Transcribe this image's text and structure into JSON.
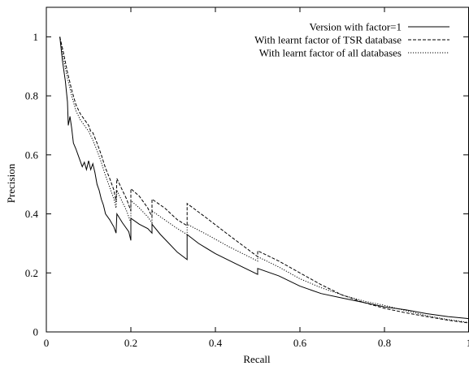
{
  "chart_data": {
    "type": "line",
    "title": "",
    "xlabel": "Recall",
    "ylabel": "Precision",
    "xlim": [
      0,
      1
    ],
    "ylim": [
      0,
      1.1
    ],
    "xticks": [
      0,
      0.2,
      0.4,
      0.6,
      0.8,
      1
    ],
    "yticks": [
      0,
      0.2,
      0.4,
      0.6,
      0.8,
      1
    ],
    "xtick_labels": [
      "0",
      "0.2",
      "0.4",
      "0.6",
      "0.8",
      "1"
    ],
    "ytick_labels": [
      "0",
      "0.2",
      "0.4",
      "0.6",
      "0.8",
      "1"
    ],
    "grid": false,
    "legend_position": "top-right",
    "series": [
      {
        "name": "Version with factor=1",
        "line_style": "solid",
        "points": [
          [
            0.032,
            1.0
          ],
          [
            0.038,
            0.92
          ],
          [
            0.045,
            0.85
          ],
          [
            0.05,
            0.78
          ],
          [
            0.052,
            0.7
          ],
          [
            0.056,
            0.73
          ],
          [
            0.06,
            0.69
          ],
          [
            0.064,
            0.64
          ],
          [
            0.07,
            0.62
          ],
          [
            0.075,
            0.6
          ],
          [
            0.08,
            0.58
          ],
          [
            0.085,
            0.56
          ],
          [
            0.09,
            0.575
          ],
          [
            0.095,
            0.55
          ],
          [
            0.1,
            0.58
          ],
          [
            0.105,
            0.55
          ],
          [
            0.11,
            0.57
          ],
          [
            0.115,
            0.54
          ],
          [
            0.12,
            0.5
          ],
          [
            0.125,
            0.48
          ],
          [
            0.13,
            0.45
          ],
          [
            0.135,
            0.43
          ],
          [
            0.14,
            0.4
          ],
          [
            0.15,
            0.38
          ],
          [
            0.16,
            0.355
          ],
          [
            0.165,
            0.335
          ],
          [
            0.167,
            0.4
          ],
          [
            0.18,
            0.37
          ],
          [
            0.195,
            0.34
          ],
          [
            0.2,
            0.31
          ],
          [
            0.2,
            0.385
          ],
          [
            0.22,
            0.365
          ],
          [
            0.24,
            0.35
          ],
          [
            0.25,
            0.335
          ],
          [
            0.25,
            0.365
          ],
          [
            0.27,
            0.33
          ],
          [
            0.29,
            0.3
          ],
          [
            0.31,
            0.27
          ],
          [
            0.333,
            0.245
          ],
          [
            0.333,
            0.33
          ],
          [
            0.36,
            0.3
          ],
          [
            0.4,
            0.265
          ],
          [
            0.45,
            0.23
          ],
          [
            0.5,
            0.195
          ],
          [
            0.5,
            0.215
          ],
          [
            0.55,
            0.19
          ],
          [
            0.6,
            0.155
          ],
          [
            0.65,
            0.13
          ],
          [
            0.7,
            0.115
          ],
          [
            0.75,
            0.1
          ],
          [
            0.8,
            0.085
          ],
          [
            0.85,
            0.075
          ],
          [
            0.9,
            0.062
          ],
          [
            0.95,
            0.052
          ],
          [
            1.0,
            0.045
          ]
        ]
      },
      {
        "name": "With learnt factor of TSR database",
        "line_style": "dashed",
        "points": [
          [
            0.032,
            1.0
          ],
          [
            0.04,
            0.95
          ],
          [
            0.05,
            0.88
          ],
          [
            0.06,
            0.82
          ],
          [
            0.07,
            0.77
          ],
          [
            0.08,
            0.74
          ],
          [
            0.09,
            0.72
          ],
          [
            0.1,
            0.7
          ],
          [
            0.105,
            0.68
          ],
          [
            0.11,
            0.675
          ],
          [
            0.12,
            0.64
          ],
          [
            0.13,
            0.6
          ],
          [
            0.14,
            0.555
          ],
          [
            0.15,
            0.52
          ],
          [
            0.16,
            0.48
          ],
          [
            0.165,
            0.44
          ],
          [
            0.167,
            0.52
          ],
          [
            0.18,
            0.48
          ],
          [
            0.19,
            0.45
          ],
          [
            0.2,
            0.41
          ],
          [
            0.2,
            0.485
          ],
          [
            0.22,
            0.46
          ],
          [
            0.24,
            0.42
          ],
          [
            0.25,
            0.39
          ],
          [
            0.25,
            0.45
          ],
          [
            0.28,
            0.42
          ],
          [
            0.31,
            0.38
          ],
          [
            0.333,
            0.36
          ],
          [
            0.333,
            0.435
          ],
          [
            0.38,
            0.385
          ],
          [
            0.43,
            0.33
          ],
          [
            0.5,
            0.255
          ],
          [
            0.5,
            0.275
          ],
          [
            0.55,
            0.24
          ],
          [
            0.6,
            0.2
          ],
          [
            0.65,
            0.16
          ],
          [
            0.7,
            0.125
          ],
          [
            0.75,
            0.1
          ],
          [
            0.8,
            0.08
          ],
          [
            0.85,
            0.065
          ],
          [
            0.9,
            0.052
          ],
          [
            0.95,
            0.04
          ],
          [
            1.0,
            0.03
          ]
        ]
      },
      {
        "name": "With learnt factor of all databases",
        "line_style": "dotted",
        "points": [
          [
            0.032,
            1.0
          ],
          [
            0.04,
            0.93
          ],
          [
            0.05,
            0.86
          ],
          [
            0.06,
            0.8
          ],
          [
            0.07,
            0.75
          ],
          [
            0.08,
            0.72
          ],
          [
            0.09,
            0.7
          ],
          [
            0.1,
            0.68
          ],
          [
            0.11,
            0.65
          ],
          [
            0.12,
            0.615
          ],
          [
            0.13,
            0.575
          ],
          [
            0.14,
            0.53
          ],
          [
            0.15,
            0.49
          ],
          [
            0.16,
            0.45
          ],
          [
            0.165,
            0.42
          ],
          [
            0.167,
            0.48
          ],
          [
            0.18,
            0.44
          ],
          [
            0.19,
            0.41
          ],
          [
            0.2,
            0.37
          ],
          [
            0.2,
            0.445
          ],
          [
            0.22,
            0.42
          ],
          [
            0.24,
            0.39
          ],
          [
            0.25,
            0.37
          ],
          [
            0.25,
            0.41
          ],
          [
            0.28,
            0.38
          ],
          [
            0.31,
            0.35
          ],
          [
            0.333,
            0.33
          ],
          [
            0.333,
            0.365
          ],
          [
            0.38,
            0.33
          ],
          [
            0.43,
            0.29
          ],
          [
            0.5,
            0.24
          ],
          [
            0.5,
            0.255
          ],
          [
            0.55,
            0.22
          ],
          [
            0.6,
            0.18
          ],
          [
            0.65,
            0.15
          ],
          [
            0.7,
            0.125
          ],
          [
            0.75,
            0.105
          ],
          [
            0.8,
            0.09
          ],
          [
            0.85,
            0.072
          ],
          [
            0.9,
            0.055
          ],
          [
            0.95,
            0.042
          ],
          [
            1.0,
            0.032
          ]
        ]
      }
    ]
  }
}
